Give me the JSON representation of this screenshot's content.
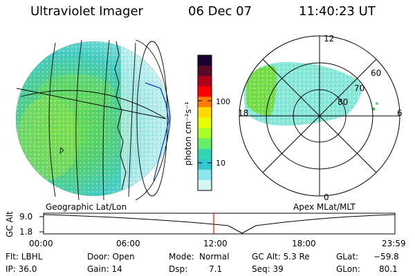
{
  "header": {
    "title": "Ultraviolet Imager",
    "date": "06 Dec 07",
    "time": "11:40:23 UT"
  },
  "colorbar": {
    "unit_label": "photon cm⁻²s⁻¹",
    "ticks": [
      "100",
      "10"
    ],
    "colors": [
      "#1a0033",
      "#5a0a28",
      "#b0001a",
      "#ff0000",
      "#ff7a00",
      "#ffd800",
      "#e6ff00",
      "#a8ff2a",
      "#66ee66",
      "#33d6b0",
      "#33c8d0",
      "#88e8ee",
      "#d6f6f6"
    ]
  },
  "polar": {
    "mlt_labels": [
      "12",
      "18",
      "6",
      "0"
    ],
    "mlat_labels": [
      "60",
      "70",
      "80"
    ]
  },
  "labels": {
    "geo": "Geographic Lat/Lon",
    "apex": "Apex MLat/MLT"
  },
  "alt_plot": {
    "ylabel": "GC Alt",
    "ymax": "9.0",
    "ymin": "1.8",
    "time_ticks": [
      "00:00",
      "06:00",
      "12:00",
      "18:00",
      "23:59"
    ]
  },
  "info": {
    "flt": "Flt: LBHL",
    "ip": "IP: 36.0",
    "door": "Door: Open",
    "gain": "Gain: 14",
    "mode_label": "Mode:",
    "mode_value": "Normal",
    "dsp_label": "Dsp:",
    "dsp_value": "7.1",
    "gcalt": "GC Alt: 5.3 Re",
    "seq": "Seq: 39",
    "glat_label": "GLat:",
    "glat_value": "−59.8",
    "glon_label": "GLon:",
    "glon_value": "80.1"
  }
}
